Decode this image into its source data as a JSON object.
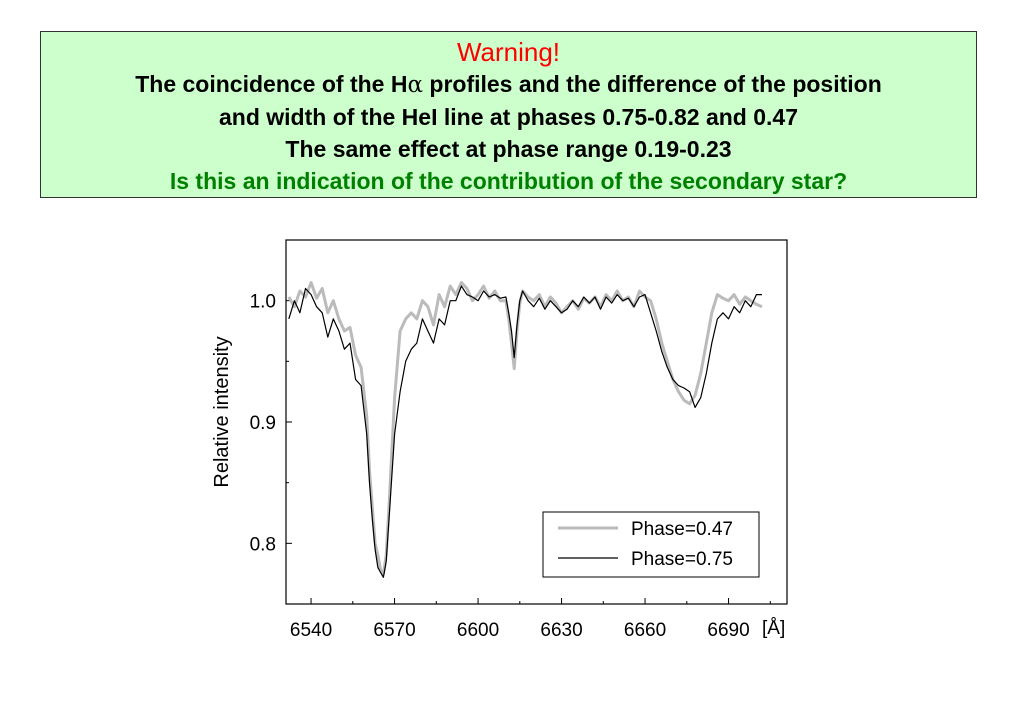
{
  "header": {
    "title": "Warning!",
    "line1_before": "The coincidence of the H",
    "line1_symbol": "α",
    "line1_after": " profiles and the difference of the position",
    "line2": "and width of the HeI line at phases 0.75-0.82 and 0.47",
    "line3": "The same effect at phase range 0.19-0.23",
    "question": "Is this an indication of the contribution of the secondary star?"
  },
  "colors": {
    "title": "#ff0000",
    "question": "#008000",
    "box_background": "#ccffcc",
    "series_047": "#bbbbbb",
    "series_075": "#000000"
  },
  "chart_data": {
    "type": "line",
    "xlabel": "",
    "x_unit": "[Å]",
    "ylabel": "Relative intensity",
    "xlim": [
      6531,
      6711
    ],
    "ylim": [
      0.75,
      1.05
    ],
    "x_ticks": [
      6540,
      6570,
      6600,
      6630,
      6660,
      6690
    ],
    "y_ticks": [
      0.8,
      0.9,
      1.0
    ],
    "y_tick_labels": [
      "0.8",
      "0.9",
      "1.0"
    ],
    "legend_position": "bottom-right",
    "series": [
      {
        "name": "Phase=0.47",
        "color": "#bbbbbb",
        "x": [
          6532,
          6534,
          6536,
          6538,
          6540,
          6542,
          6544,
          6546,
          6548,
          6550,
          6552,
          6554,
          6556,
          6558,
          6560,
          6561,
          6562,
          6563,
          6564,
          6565,
          6566,
          6567,
          6568,
          6570,
          6572,
          6574,
          6576,
          6578,
          6580,
          6582,
          6584,
          6586,
          6588,
          6590,
          6592,
          6594,
          6596,
          6598,
          6600,
          6602,
          6604,
          6606,
          6608,
          6610,
          6611,
          6612,
          6613,
          6614,
          6615,
          6616,
          6618,
          6620,
          6622,
          6624,
          6626,
          6628,
          6630,
          6632,
          6634,
          6636,
          6638,
          6640,
          6642,
          6644,
          6646,
          6648,
          6650,
          6652,
          6654,
          6656,
          6658,
          6660,
          6662,
          6664,
          6666,
          6668,
          6670,
          6672,
          6674,
          6676,
          6678,
          6680,
          6682,
          6684,
          6686,
          6688,
          6690,
          6692,
          6694,
          6696,
          6698,
          6700,
          6702
        ],
        "values": [
          1.003,
          0.995,
          1.008,
          1.003,
          1.015,
          1.002,
          1.01,
          0.99,
          1.0,
          0.985,
          0.975,
          0.978,
          0.955,
          0.945,
          0.905,
          0.86,
          0.83,
          0.8,
          0.79,
          0.778,
          0.775,
          0.79,
          0.83,
          0.92,
          0.975,
          0.985,
          0.99,
          0.985,
          1.0,
          0.995,
          0.98,
          1.005,
          0.995,
          1.012,
          1.005,
          1.015,
          1.01,
          1.0,
          1.005,
          1.012,
          1.002,
          1.008,
          1.0,
          1.0,
          0.985,
          0.965,
          0.944,
          0.975,
          0.998,
          1.008,
          1.003,
          1.0,
          1.005,
          0.995,
          1.003,
          0.998,
          0.99,
          0.995,
          1.0,
          0.993,
          1.002,
          0.998,
          1.003,
          0.995,
          1.005,
          1.0,
          1.008,
          1.0,
          1.003,
          0.995,
          1.008,
          1.003,
          1.0,
          0.985,
          0.965,
          0.95,
          0.935,
          0.925,
          0.918,
          0.915,
          0.922,
          0.94,
          0.965,
          0.99,
          1.005,
          1.002,
          1.0,
          1.005,
          0.997,
          1.003,
          1.0,
          0.997,
          0.995
        ]
      },
      {
        "name": "Phase=0.75",
        "color": "#000000",
        "x": [
          6532,
          6534,
          6536,
          6538,
          6540,
          6542,
          6544,
          6546,
          6548,
          6550,
          6552,
          6554,
          6556,
          6558,
          6560,
          6561,
          6562,
          6563,
          6564,
          6565,
          6566,
          6567,
          6568,
          6570,
          6572,
          6574,
          6576,
          6578,
          6580,
          6582,
          6584,
          6586,
          6588,
          6590,
          6592,
          6594,
          6596,
          6598,
          6600,
          6602,
          6604,
          6606,
          6608,
          6610,
          6611,
          6612,
          6613,
          6614,
          6615,
          6616,
          6618,
          6620,
          6622,
          6624,
          6626,
          6628,
          6630,
          6632,
          6634,
          6636,
          6638,
          6640,
          6642,
          6644,
          6646,
          6648,
          6650,
          6652,
          6654,
          6656,
          6658,
          6660,
          6662,
          6664,
          6666,
          6668,
          6670,
          6672,
          6674,
          6676,
          6678,
          6680,
          6682,
          6684,
          6686,
          6688,
          6690,
          6692,
          6694,
          6696,
          6698,
          6700,
          6702
        ],
        "values": [
          0.985,
          1.0,
          0.99,
          1.01,
          1.005,
          0.995,
          0.99,
          0.97,
          0.985,
          0.975,
          0.96,
          0.965,
          0.935,
          0.93,
          0.89,
          0.85,
          0.82,
          0.795,
          0.78,
          0.776,
          0.772,
          0.785,
          0.82,
          0.89,
          0.925,
          0.95,
          0.96,
          0.965,
          0.985,
          0.975,
          0.965,
          0.985,
          0.98,
          1.0,
          1.0,
          1.012,
          1.005,
          1.003,
          1.0,
          1.008,
          1.003,
          1.005,
          1.002,
          1.003,
          0.99,
          0.975,
          0.953,
          0.98,
          1.0,
          1.008,
          1.0,
          0.995,
          1.002,
          0.993,
          1.0,
          0.995,
          0.99,
          0.993,
          1.0,
          0.995,
          1.003,
          0.998,
          1.003,
          0.993,
          1.003,
          0.998,
          1.005,
          1.0,
          1.002,
          0.995,
          1.003,
          1.005,
          0.99,
          0.975,
          0.958,
          0.945,
          0.935,
          0.93,
          0.928,
          0.925,
          0.912,
          0.92,
          0.94,
          0.965,
          0.985,
          0.99,
          0.985,
          0.995,
          0.99,
          1.0,
          0.995,
          1.005,
          1.005
        ]
      }
    ]
  }
}
